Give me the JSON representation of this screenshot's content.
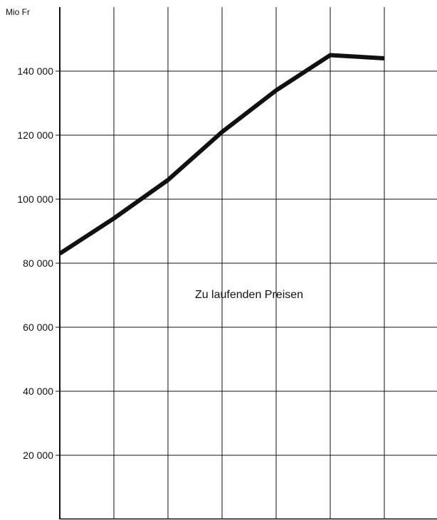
{
  "chart_data": {
    "type": "line",
    "ylabel": "Mio Fr",
    "annotation": "Zu laufenden Preisen",
    "ylim": [
      0,
      160000
    ],
    "grid": true,
    "yticks": [
      20000,
      40000,
      60000,
      80000,
      100000,
      120000,
      140000
    ],
    "ytick_labels": [
      "20 000",
      "40 000",
      "60 000",
      "80 000",
      "100 000",
      "120 000",
      "140 000"
    ],
    "x_intervals": 7,
    "series": [
      {
        "color": "#111111",
        "x": [
          0,
          1,
          2,
          3,
          4,
          5,
          6
        ],
        "values": [
          83000,
          94000,
          106000,
          121000,
          134000,
          145000,
          144000
        ]
      }
    ]
  }
}
